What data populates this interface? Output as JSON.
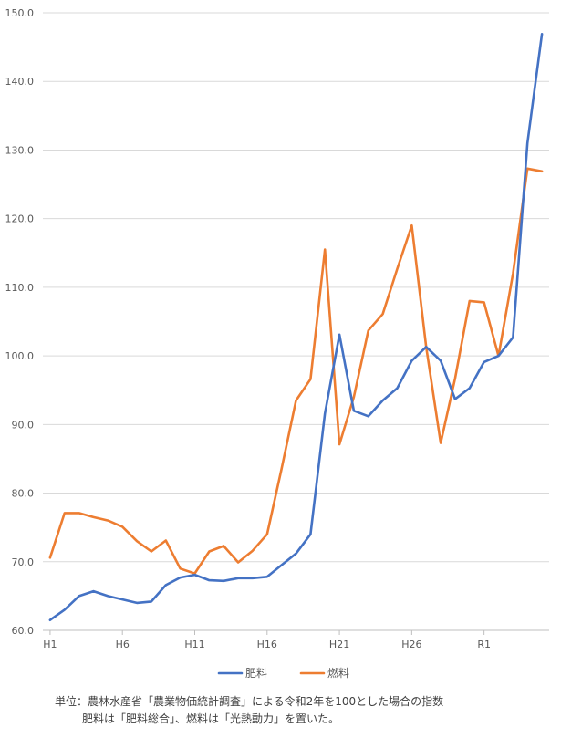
{
  "chart_data": {
    "type": "line",
    "title": "",
    "xlabel": "",
    "ylabel": "",
    "ylim": [
      60,
      150
    ],
    "yticks": [
      "60.0",
      "70.0",
      "80.0",
      "90.0",
      "100.0",
      "110.0",
      "120.0",
      "130.0",
      "140.0",
      "150.0"
    ],
    "x": [
      "H1",
      "H2",
      "H3",
      "H4",
      "H5",
      "H6",
      "H7",
      "H8",
      "H9",
      "H10",
      "H11",
      "H12",
      "H13",
      "H14",
      "H15",
      "H16",
      "H17",
      "H18",
      "H19",
      "H20",
      "H21",
      "H22",
      "H23",
      "H24",
      "H25",
      "H26",
      "H27",
      "H28",
      "H29",
      "H30",
      "R1",
      "R2",
      "R3",
      "R4",
      "R5"
    ],
    "xtick_labels": [
      "H1",
      "H6",
      "H11",
      "H16",
      "H21",
      "H26",
      "R1"
    ],
    "grid": true,
    "legend_position": "bottom",
    "series": [
      {
        "name": "肥料",
        "color": "#4472C4",
        "values": [
          61.5,
          63.0,
          65.0,
          65.7,
          65.0,
          64.5,
          64.0,
          64.2,
          66.6,
          67.7,
          68.1,
          67.3,
          67.2,
          67.6,
          67.6,
          67.8,
          69.5,
          71.2,
          74.0,
          91.6,
          103.1,
          92.0,
          91.2,
          93.5,
          95.3,
          99.3,
          101.3,
          99.3,
          93.7,
          95.3,
          99.1,
          100.0,
          102.7,
          131.0,
          146.9
        ]
      },
      {
        "name": "燃料",
        "color": "#ED7D31",
        "values": [
          70.6,
          77.1,
          77.1,
          76.5,
          76.0,
          75.1,
          73.0,
          71.5,
          73.1,
          69.0,
          68.3,
          71.5,
          72.3,
          69.9,
          71.6,
          74.0,
          83.5,
          93.5,
          96.6,
          115.5,
          87.1,
          94.0,
          103.7,
          106.1,
          112.7,
          119.0,
          101.3,
          87.3,
          96.7,
          108.0,
          107.8,
          100.0,
          112.0,
          127.3,
          126.9
        ]
      }
    ]
  },
  "note": {
    "line1": "単位：農林水産省「農業物価統計調査」による令和2年を100とした場合の指数",
    "line2": "肥料は「肥料総合」、燃料は「光熱動力」を置いた。"
  }
}
